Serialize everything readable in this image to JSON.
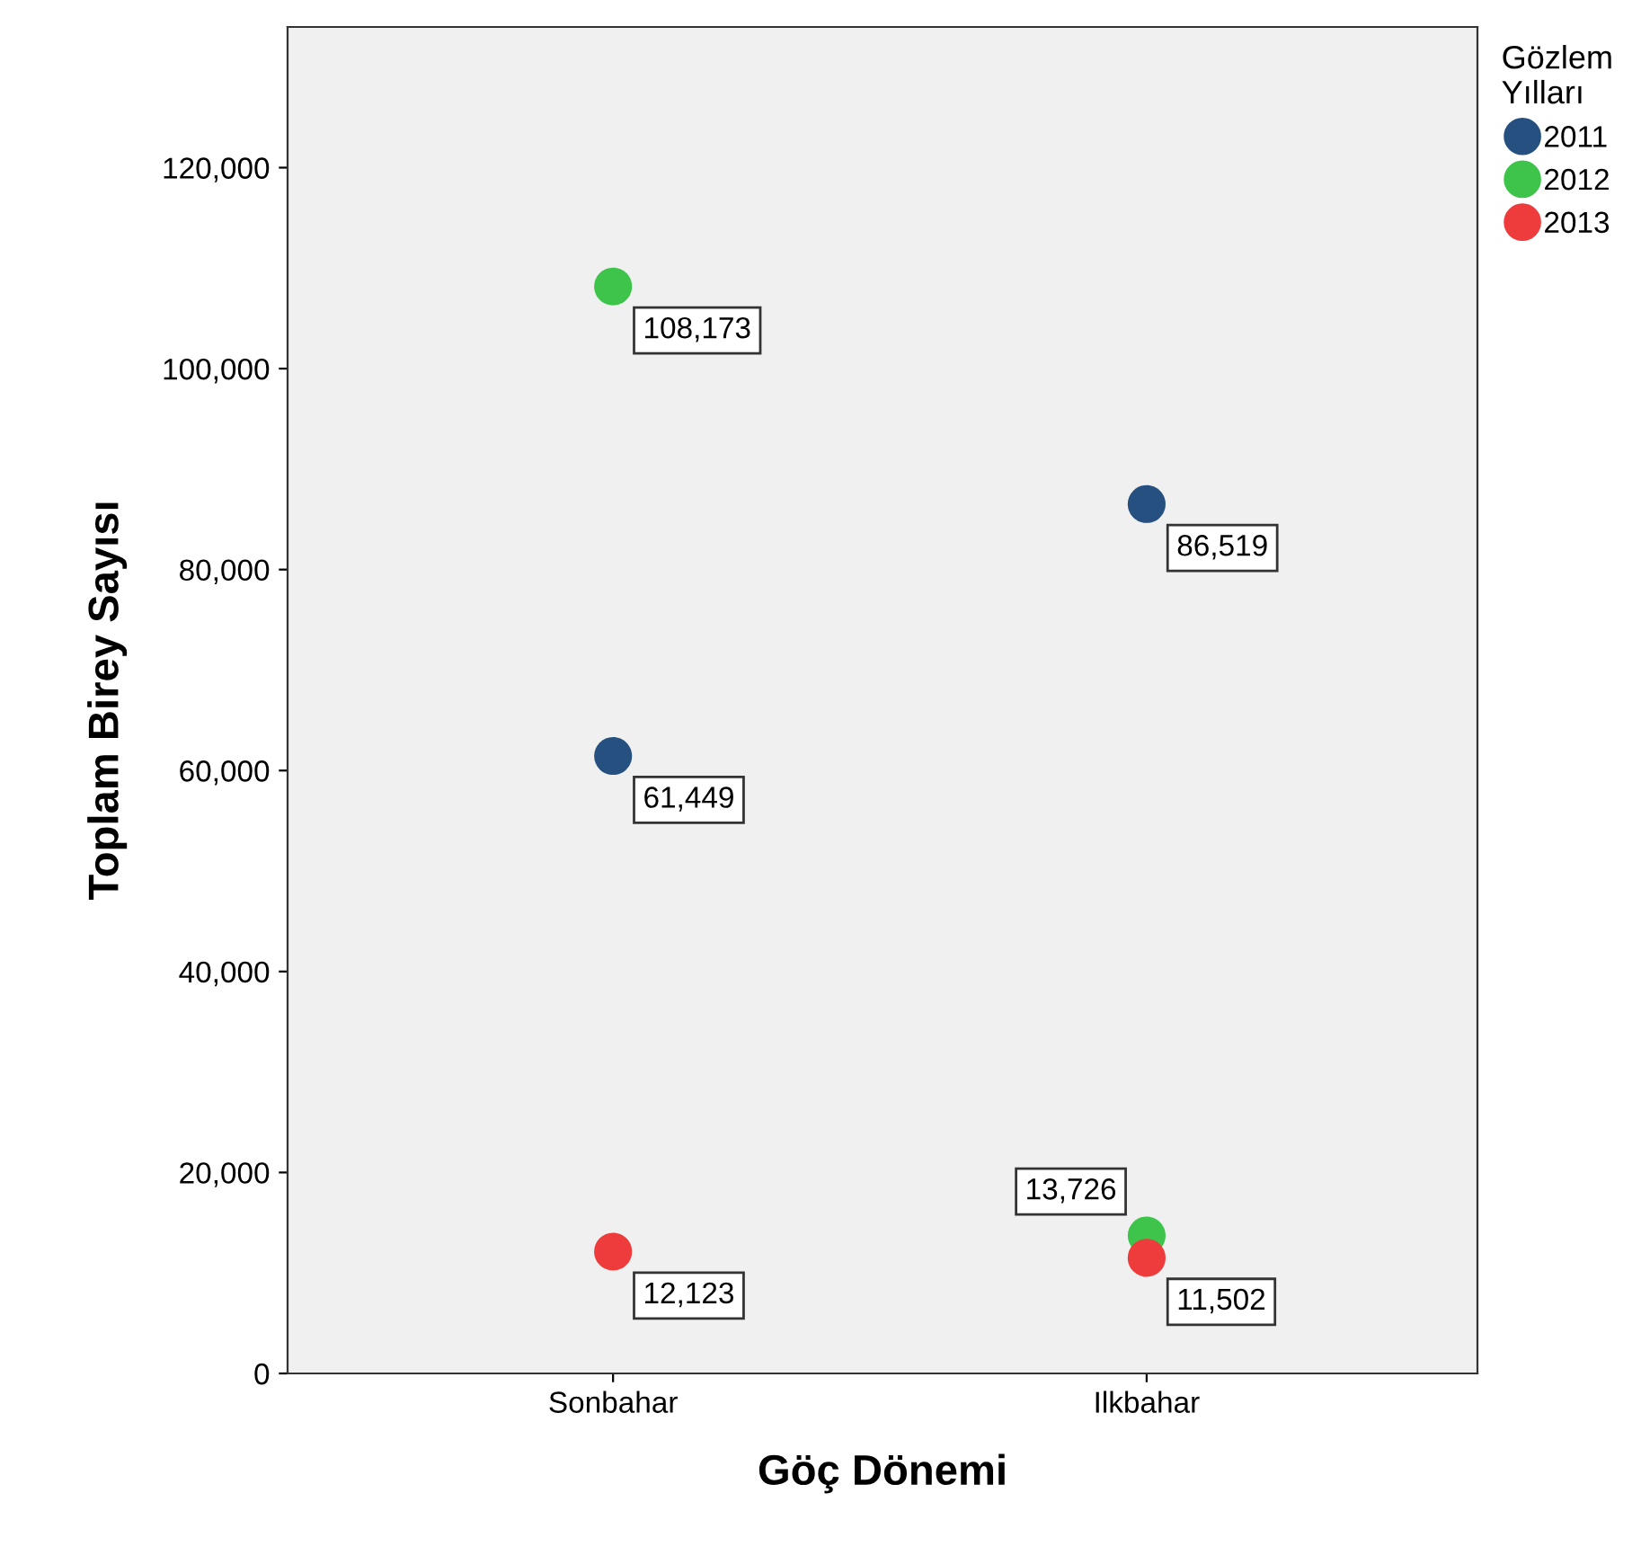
{
  "chart_data": {
    "type": "scatter",
    "xlabel": "Göç Dönemi",
    "ylabel": "Toplam Birey Sayısı",
    "legend_title": "Gözlem Yılları",
    "categories": [
      "Sonbahar",
      "Ilkbahar"
    ],
    "series": [
      {
        "name": "2011",
        "color": "#25507f",
        "values": [
          61449,
          86519
        ],
        "value_labels": [
          "61,449",
          "86,519"
        ]
      },
      {
        "name": "2012",
        "color": "#3ec44a",
        "values": [
          108173,
          13726
        ],
        "value_labels": [
          "108,173",
          "13,726"
        ]
      },
      {
        "name": "2013",
        "color": "#ee3b3b",
        "values": [
          12123,
          11502
        ],
        "value_labels": [
          "12,123",
          "11,502"
        ]
      }
    ],
    "ylim": [
      0,
      134000
    ],
    "yticks": [
      0,
      {
        "value": 20000,
        "label": "20,000"
      },
      {
        "value": 40000,
        "label": "40,000"
      },
      {
        "value": 60000,
        "label": "60,000"
      },
      {
        "value": 80000,
        "label": "80,000"
      },
      {
        "value": 100000,
        "label": "100,000"
      },
      {
        "value": 120000,
        "label": "120,000"
      }
    ],
    "marker": "circle",
    "grid": false,
    "legend": "top right"
  }
}
